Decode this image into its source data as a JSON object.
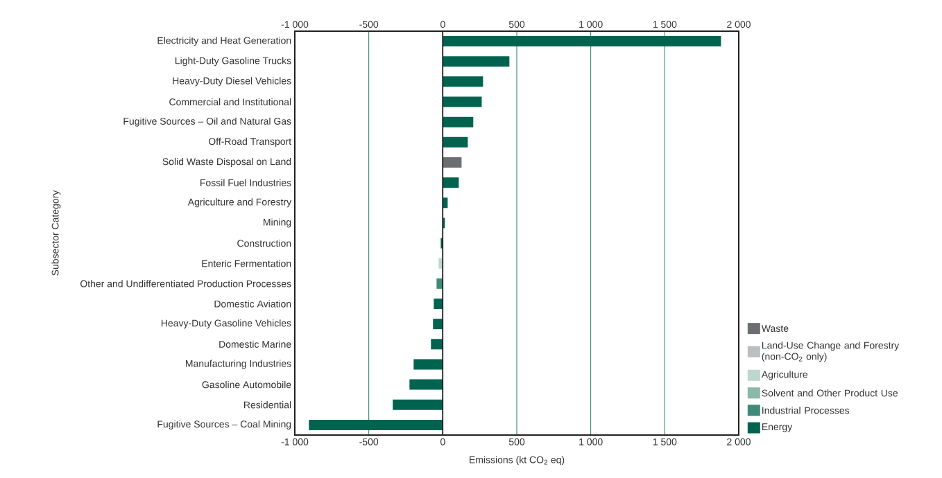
{
  "chart_data": {
    "type": "bar",
    "orientation": "horizontal",
    "xlabel": "Emissions (kt CO$_{2}$ eq)",
    "ylabel": "Subsector Category",
    "categories": [
      "Electricity and Heat Generation",
      "Light-Duty Gasoline Trucks",
      "Heavy-Duty Diesel Vehicles",
      "Commercial and Institutional",
      "Fugitive Sources – Oil and Natural Gas",
      "Off-Road Transport",
      "Solid Waste Disposal on Land",
      "Fossil Fuel Industries",
      "Agriculture and Forestry",
      "Mining",
      "Construction",
      "Enteric Fermentation",
      "Other and Undifferentiated Production Processes",
      "Domestic Aviation",
      "Heavy-Duty Gasoline Vehicles",
      "Domestic Marine",
      "Manufacturing Industries",
      "Gasoline Automobile",
      "Residential",
      "Fugitive Sources – Coal Mining"
    ],
    "series": [
      {
        "name": "Waste",
        "color": "#6d6e71",
        "values": [
          null,
          null,
          null,
          null,
          null,
          null,
          127,
          null,
          null,
          null,
          null,
          null,
          null,
          null,
          null,
          null,
          null,
          null,
          null,
          null
        ]
      },
      {
        "name": "Land-Use Change and Forestry (non-CO$_{2}$ only)",
        "color": "#bcbec0",
        "values": [
          null,
          null,
          null,
          null,
          null,
          null,
          null,
          null,
          null,
          null,
          null,
          null,
          null,
          null,
          null,
          null,
          null,
          null,
          null,
          null
        ]
      },
      {
        "name": "Agriculture",
        "color": "#bdd7cf",
        "values": [
          null,
          null,
          null,
          null,
          null,
          null,
          null,
          null,
          null,
          null,
          null,
          -28,
          null,
          null,
          null,
          null,
          null,
          null,
          null,
          null
        ]
      },
      {
        "name": "Solvent and Other Product Use",
        "color": "#8ab8aa",
        "values": [
          null,
          null,
          null,
          null,
          null,
          null,
          null,
          null,
          null,
          null,
          null,
          null,
          null,
          null,
          null,
          null,
          null,
          null,
          null,
          null
        ]
      },
      {
        "name": "Industrial Processes",
        "color": "#3f8a78",
        "values": [
          null,
          null,
          null,
          null,
          null,
          null,
          null,
          null,
          null,
          null,
          null,
          null,
          -42,
          null,
          null,
          null,
          null,
          null,
          null,
          null
        ]
      },
      {
        "name": "Energy",
        "color": "#00634f",
        "values": [
          1880,
          450,
          272,
          263,
          206,
          169,
          null,
          108,
          33,
          14,
          -14,
          null,
          null,
          -61,
          -66,
          -80,
          -197,
          -225,
          -338,
          -905
        ]
      }
    ],
    "xlim": [
      -1000,
      2000
    ],
    "xticks": [
      {
        "value": -1000,
        "label": "-1 000"
      },
      -500,
      0,
      500,
      {
        "value": 1000,
        "label": "1 000"
      },
      {
        "value": 1500,
        "label": "1 500"
      },
      {
        "value": 2000,
        "label": "2 000"
      }
    ],
    "x2lim": [
      -1000,
      2000
    ],
    "x2ticks": [
      {
        "value": -1000,
        "label": "-1 000"
      },
      -500,
      0,
      500,
      {
        "value": 1000,
        "label": "1 000"
      },
      {
        "value": 1500,
        "label": "1 500"
      },
      {
        "value": 2000,
        "label": "2 000"
      }
    ],
    "grid": "x",
    "legend": "right"
  }
}
